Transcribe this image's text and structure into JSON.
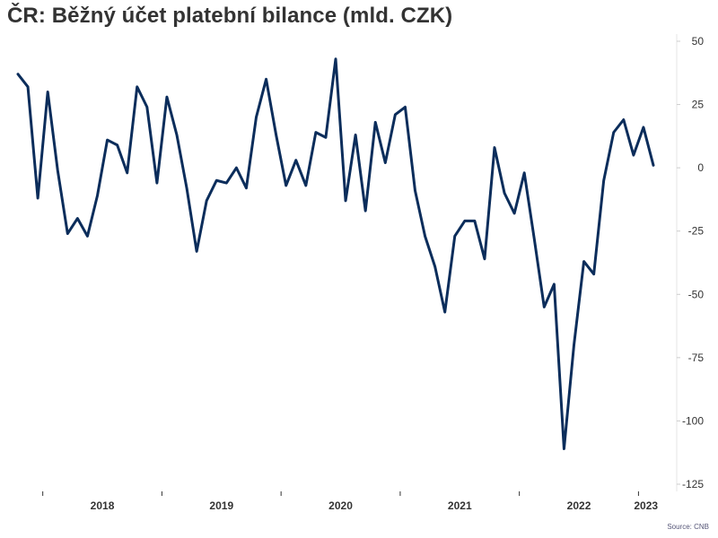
{
  "chart_data": {
    "type": "line",
    "title": "ČR: Běžný účet platební bilance (mld. CZK)",
    "source": "Source: CNB",
    "line_color": "#0b2d5b",
    "ylim": [
      -125,
      50
    ],
    "y_ticks": [
      50,
      25,
      0,
      -25,
      -50,
      -75,
      -100,
      -125
    ],
    "x_year_labels": [
      "2018",
      "2019",
      "2020",
      "2021",
      "2022",
      "2023"
    ],
    "x_start": "2017-10",
    "series": [
      {
        "values": [
          37,
          32,
          -12,
          30,
          -1,
          -26,
          -20,
          -27,
          -11,
          11,
          9,
          -2,
          32,
          24,
          -6,
          28,
          13,
          -8,
          -33,
          -13,
          -5,
          -6,
          0,
          -8,
          20,
          35,
          13,
          -7,
          3,
          -7,
          14,
          12,
          43,
          -13,
          13,
          -17,
          18,
          2,
          21,
          24,
          -9,
          -27,
          -39,
          -57,
          -27,
          -21,
          -21,
          -36,
          8,
          -10,
          -18,
          -2,
          -28,
          -55,
          -46,
          -111,
          -70,
          -37,
          -42,
          -5,
          14,
          19,
          5,
          16,
          1
        ]
      }
    ],
    "grid": false,
    "legend": "none"
  }
}
